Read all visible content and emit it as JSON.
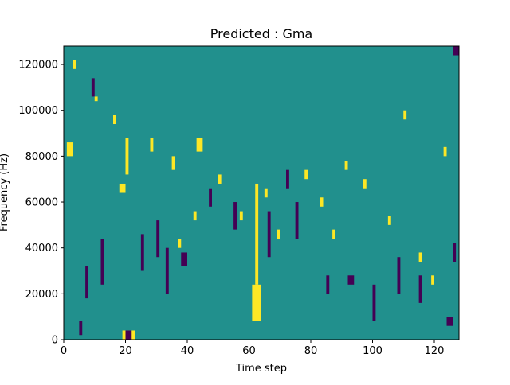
{
  "chart_data": {
    "type": "heatmap",
    "title": "Predicted : Gma",
    "xlabel": "Time step",
    "ylabel": "Frequency (Hz)",
    "xlim": [
      0,
      128
    ],
    "ylim": [
      0,
      128000
    ],
    "x_ticks": [
      0,
      20,
      40,
      60,
      80,
      100,
      120
    ],
    "y_ticks": [
      0,
      20000,
      40000,
      60000,
      80000,
      100000,
      120000
    ],
    "x_tick_labels": [
      "0",
      "20",
      "40",
      "60",
      "80",
      "100",
      "120"
    ],
    "y_tick_labels": [
      "0",
      "20000",
      "40000",
      "60000",
      "80000",
      "100000",
      "120000"
    ],
    "n_time_steps": 128,
    "n_freq_bins": 64,
    "freq_bin_width_hz": 2000,
    "levels": [
      "low",
      "mid",
      "high"
    ],
    "level_colors": {
      "low": "#440154",
      "mid": "#21908d",
      "high": "#fde725"
    },
    "background_level": "mid",
    "cells": [
      {
        "t": [
          19,
          23
        ],
        "f": [
          0,
          2
        ],
        "level": "high"
      },
      {
        "t": [
          20,
          22
        ],
        "f": [
          0,
          2
        ],
        "level": "low"
      },
      {
        "t": [
          61,
          64
        ],
        "f": [
          4,
          12
        ],
        "level": "high"
      },
      {
        "t": [
          62,
          63
        ],
        "f": [
          12,
          34
        ],
        "level": "high"
      },
      {
        "t": [
          18,
          20
        ],
        "f": [
          32,
          34
        ],
        "level": "high"
      },
      {
        "t": [
          1,
          3
        ],
        "f": [
          40,
          43
        ],
        "level": "high"
      },
      {
        "t": [
          20,
          21
        ],
        "f": [
          36,
          44
        ],
        "level": "high"
      },
      {
        "t": [
          43,
          45
        ],
        "f": [
          41,
          44
        ],
        "level": "high"
      },
      {
        "t": [
          5,
          6
        ],
        "f": [
          1,
          4
        ],
        "level": "low"
      },
      {
        "t": [
          7,
          8
        ],
        "f": [
          9,
          16
        ],
        "level": "low"
      },
      {
        "t": [
          12,
          13
        ],
        "f": [
          12,
          22
        ],
        "level": "low"
      },
      {
        "t": [
          25,
          26
        ],
        "f": [
          15,
          23
        ],
        "level": "low"
      },
      {
        "t": [
          30,
          31
        ],
        "f": [
          18,
          26
        ],
        "level": "low"
      },
      {
        "t": [
          33,
          34
        ],
        "f": [
          10,
          20
        ],
        "level": "low"
      },
      {
        "t": [
          38,
          40
        ],
        "f": [
          16,
          19
        ],
        "level": "low"
      },
      {
        "t": [
          55,
          56
        ],
        "f": [
          24,
          30
        ],
        "level": "low"
      },
      {
        "t": [
          66,
          67
        ],
        "f": [
          18,
          28
        ],
        "level": "low"
      },
      {
        "t": [
          75,
          76
        ],
        "f": [
          22,
          30
        ],
        "level": "low"
      },
      {
        "t": [
          85,
          86
        ],
        "f": [
          10,
          14
        ],
        "level": "low"
      },
      {
        "t": [
          92,
          94
        ],
        "f": [
          12,
          14
        ],
        "level": "low"
      },
      {
        "t": [
          100,
          101
        ],
        "f": [
          4,
          12
        ],
        "level": "low"
      },
      {
        "t": [
          108,
          109
        ],
        "f": [
          10,
          18
        ],
        "level": "low"
      },
      {
        "t": [
          115,
          116
        ],
        "f": [
          8,
          14
        ],
        "level": "low"
      },
      {
        "t": [
          126,
          128
        ],
        "f": [
          62,
          64
        ],
        "level": "low"
      },
      {
        "t": [
          126,
          127
        ],
        "f": [
          17,
          21
        ],
        "level": "low"
      },
      {
        "t": [
          124,
          126
        ],
        "f": [
          3,
          5
        ],
        "level": "low"
      },
      {
        "t": [
          72,
          73
        ],
        "f": [
          33,
          37
        ],
        "level": "low"
      },
      {
        "t": [
          9,
          10
        ],
        "f": [
          53,
          57
        ],
        "level": "low"
      },
      {
        "t": [
          47,
          48
        ],
        "f": [
          29,
          33
        ],
        "level": "low"
      },
      {
        "t": [
          3,
          4
        ],
        "f": [
          59,
          61
        ],
        "level": "high"
      },
      {
        "t": [
          10,
          11
        ],
        "f": [
          52,
          53
        ],
        "level": "high"
      },
      {
        "t": [
          16,
          17
        ],
        "f": [
          47,
          49
        ],
        "level": "high"
      },
      {
        "t": [
          28,
          29
        ],
        "f": [
          41,
          44
        ],
        "level": "high"
      },
      {
        "t": [
          35,
          36
        ],
        "f": [
          37,
          40
        ],
        "level": "high"
      },
      {
        "t": [
          37,
          38
        ],
        "f": [
          20,
          22
        ],
        "level": "high"
      },
      {
        "t": [
          42,
          43
        ],
        "f": [
          26,
          28
        ],
        "level": "high"
      },
      {
        "t": [
          50,
          51
        ],
        "f": [
          34,
          36
        ],
        "level": "high"
      },
      {
        "t": [
          57,
          58
        ],
        "f": [
          26,
          28
        ],
        "level": "high"
      },
      {
        "t": [
          65,
          66
        ],
        "f": [
          31,
          33
        ],
        "level": "high"
      },
      {
        "t": [
          69,
          70
        ],
        "f": [
          22,
          24
        ],
        "level": "high"
      },
      {
        "t": [
          78,
          79
        ],
        "f": [
          35,
          37
        ],
        "level": "high"
      },
      {
        "t": [
          83,
          84
        ],
        "f": [
          29,
          31
        ],
        "level": "high"
      },
      {
        "t": [
          87,
          88
        ],
        "f": [
          22,
          24
        ],
        "level": "high"
      },
      {
        "t": [
          91,
          92
        ],
        "f": [
          37,
          39
        ],
        "level": "high"
      },
      {
        "t": [
          97,
          98
        ],
        "f": [
          33,
          35
        ],
        "level": "high"
      },
      {
        "t": [
          105,
          106
        ],
        "f": [
          25,
          27
        ],
        "level": "high"
      },
      {
        "t": [
          110,
          111
        ],
        "f": [
          48,
          50
        ],
        "level": "high"
      },
      {
        "t": [
          115,
          116
        ],
        "f": [
          17,
          19
        ],
        "level": "high"
      },
      {
        "t": [
          119,
          120
        ],
        "f": [
          12,
          14
        ],
        "level": "high"
      },
      {
        "t": [
          123,
          124
        ],
        "f": [
          40,
          42
        ],
        "level": "high"
      }
    ]
  }
}
